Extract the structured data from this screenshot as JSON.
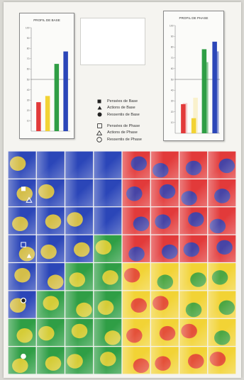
{
  "colors": {
    "red": "#e23a3a",
    "yellow": "#f2d335",
    "green": "#2f9e45",
    "blue": "#2b46b8",
    "red_light": "#f3a6a6",
    "yellow_light": "#f7eaa8"
  },
  "chart_data": [
    {
      "type": "bar",
      "title": "PROFIL DE BASE",
      "ylim": [
        0,
        100
      ],
      "ytick_labels": [
        "100",
        "90",
        "80",
        "70",
        "60",
        "50",
        "40",
        "30",
        "20",
        "10"
      ],
      "reference_line": 50,
      "bars": [
        {
          "color": "red",
          "value": 28
        },
        {
          "color": "yellow",
          "value": 34
        },
        {
          "color": "green",
          "value": 65
        },
        {
          "color": "blue",
          "value": 77
        }
      ]
    },
    {
      "type": "bar",
      "title": "PROFIL DE PHASE",
      "ylim": [
        0,
        100
      ],
      "ytick_labels": [
        "100",
        "90",
        "80",
        "70",
        "60",
        "50",
        "40",
        "30",
        "20",
        "10"
      ],
      "reference_line": 50,
      "bars": [
        {
          "color": "red",
          "value": 27,
          "phase_value": 28
        },
        {
          "color": "yellow",
          "value": 14,
          "phase_value": 33
        },
        {
          "color": "green",
          "value": 78,
          "phase_value": 66
        },
        {
          "color": "blue",
          "value": 85,
          "phase_value": 76
        }
      ]
    }
  ],
  "legend": {
    "base": [
      {
        "symbol": "square-filled",
        "label": "Pensées de Base"
      },
      {
        "symbol": "triangle-filled",
        "label": "Actions de Base"
      },
      {
        "symbol": "circle-filled",
        "label": "Ressentis de Base"
      }
    ],
    "phase": [
      {
        "symbol": "square-outline",
        "label": "Pensées de Phase"
      },
      {
        "symbol": "triangle-outline",
        "label": "Actions de Phase"
      },
      {
        "symbol": "circle-outline",
        "label": "Ressentis de Phase"
      }
    ]
  },
  "grid": {
    "rows": 8,
    "cols": 8,
    "corner_colors": [
      "blue",
      "red",
      "green",
      "yellow"
    ],
    "markers": [
      {
        "symbol": "square-filled",
        "row": 1,
        "col": 0
      },
      {
        "symbol": "triangle-outline",
        "row": 1,
        "col": 0
      },
      {
        "symbol": "square-outline",
        "row": 3,
        "col": 0
      },
      {
        "symbol": "triangle-filled",
        "row": 3,
        "col": 0
      },
      {
        "symbol": "circle-filled",
        "row": 5,
        "col": 0
      },
      {
        "symbol": "circle-outline",
        "row": 7,
        "col": 0
      }
    ]
  }
}
